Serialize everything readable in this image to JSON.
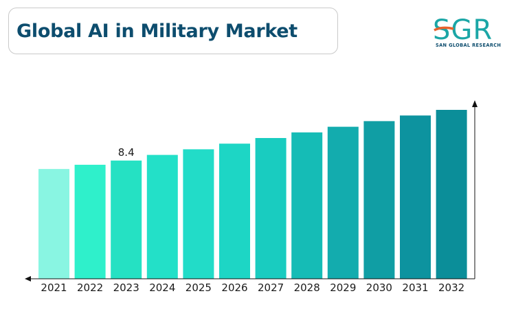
{
  "header": {
    "title": "Global AI in Military Market"
  },
  "logo": {
    "mark": "SGR",
    "subtitle": "SAN GLOBAL RESEARCH",
    "accent_colors": [
      "#e8622c",
      "#1ba6a6",
      "#0d4d6e"
    ]
  },
  "chart_data": {
    "type": "bar",
    "title": "",
    "xlabel": "",
    "ylabel": "",
    "categories": [
      "2021",
      "2022",
      "2023",
      "2024",
      "2025",
      "2026",
      "2027",
      "2028",
      "2029",
      "2030",
      "2031",
      "2032"
    ],
    "values": [
      7.8,
      8.1,
      8.4,
      8.8,
      9.2,
      9.6,
      10.0,
      10.4,
      10.8,
      11.2,
      11.6,
      12.0
    ],
    "data_labels": [
      {
        "category": "2023",
        "text": "8.4"
      }
    ],
    "ylim": [
      0,
      14
    ],
    "grid": false,
    "legend": "none",
    "colors": [
      "#89f5e2",
      "#2ff0cb",
      "#25e1c3",
      "#23e0c8",
      "#22dcc8",
      "#1dd6c5",
      "#19ccc0",
      "#15bcb6",
      "#13acae",
      "#109ea4",
      "#0d939f",
      "#0b8e99"
    ]
  }
}
